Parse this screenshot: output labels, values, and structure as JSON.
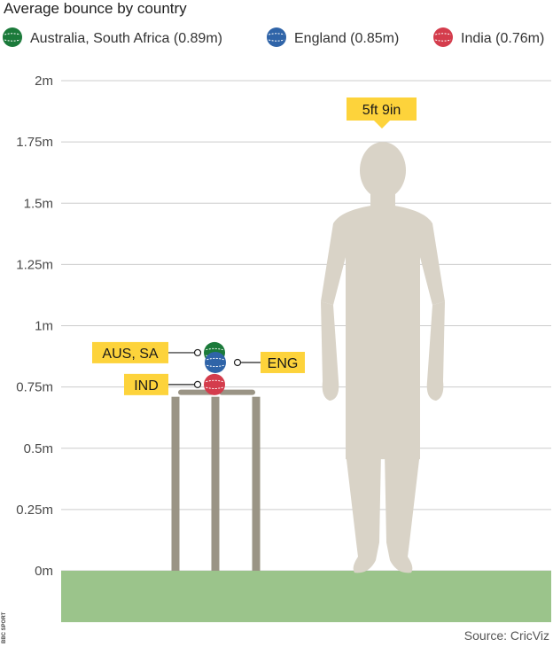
{
  "chart_data": {
    "type": "scatter",
    "title": "Average bounce by country",
    "legend": [
      {
        "label": "Australia, South Africa (0.89m)",
        "color": "#1b7a3a"
      },
      {
        "label": "England (0.85m)",
        "color": "#2f64a8"
      },
      {
        "label": "India (0.76m)",
        "color": "#d43c4c"
      }
    ],
    "legend_position": "top",
    "y_ticks": [
      "2m",
      "1.75m",
      "1.5m",
      "1.25m",
      "1m",
      "0.75m",
      "0.5m",
      "0.25m",
      "0m"
    ],
    "ylim": [
      0,
      2
    ],
    "grid": true,
    "series": [
      {
        "name": "AUS, SA",
        "value": 0.89,
        "color": "#1b7a3a",
        "label_side": "left"
      },
      {
        "name": "ENG",
        "value": 0.85,
        "color": "#2f64a8",
        "label_side": "right"
      },
      {
        "name": "IND",
        "value": 0.76,
        "color": "#d43c4c",
        "label_side": "left"
      }
    ],
    "stumps_height_m": 0.71,
    "person_height_m": 1.75,
    "person_label": "5ft 9in",
    "source": "Source: CricViz",
    "brand": "BBC SPORT"
  },
  "colors": {
    "grass": "#9bc48b",
    "stumps": "#9a9485",
    "person": "#d9d3c7",
    "label_bg": "#fdd33b",
    "grid": "#cccccc"
  },
  "icons": [
    "cricket-ball-icon",
    "stumps-illustration",
    "person-silhouette"
  ]
}
